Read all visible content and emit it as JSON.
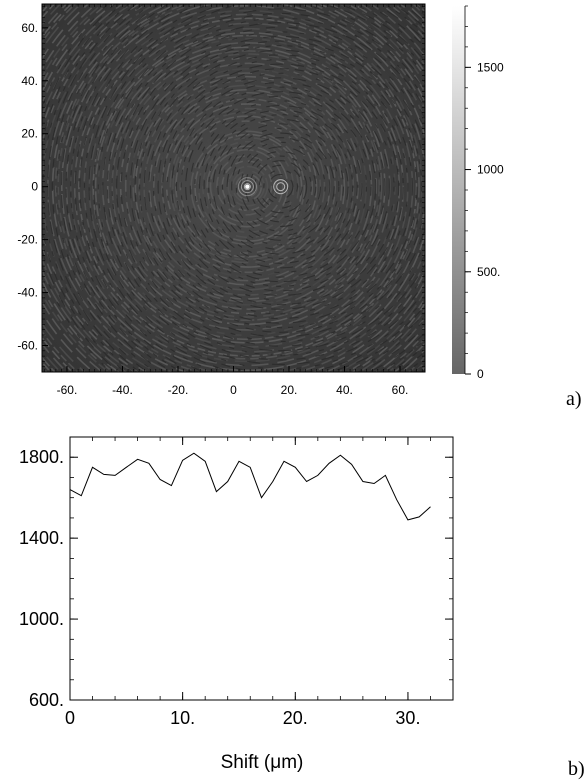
{
  "chart_data": [
    {
      "type": "heatmap",
      "panel_label": "a)",
      "title": "",
      "xlabel": "",
      "ylabel": "",
      "xlim": [
        -69,
        69
      ],
      "ylim": [
        -70,
        69
      ],
      "x_ticks": [
        {
          "value": -60,
          "label": "-60."
        },
        {
          "value": -40,
          "label": "-40."
        },
        {
          "value": -20,
          "label": "-20."
        },
        {
          "value": 0,
          "label": "0"
        },
        {
          "value": 20,
          "label": "20."
        },
        {
          "value": 40,
          "label": "40."
        },
        {
          "value": 60,
          "label": "60."
        }
      ],
      "y_ticks": [
        {
          "value": 60,
          "label": "60."
        },
        {
          "value": 40,
          "label": "40."
        },
        {
          "value": 20,
          "label": "20."
        },
        {
          "value": 0,
          "label": "0"
        },
        {
          "value": -20,
          "label": "-20."
        },
        {
          "value": -40,
          "label": "-40."
        },
        {
          "value": -60,
          "label": "-60."
        }
      ],
      "colorbar": {
        "min": 0,
        "max": 1800,
        "ticks": [
          {
            "value": 1500,
            "label": "1500"
          },
          {
            "value": 1000,
            "label": "1000"
          },
          {
            "value": 500,
            "label": "500."
          },
          {
            "value": 0,
            "label": "0"
          }
        ],
        "colors": [
          "#666666",
          "#ffffff"
        ]
      },
      "features": {
        "bright_spot": [
          5,
          0
        ],
        "ring_center_2": [
          17,
          0
        ]
      }
    },
    {
      "type": "line",
      "panel_label": "b)",
      "title": "",
      "xlabel": "Shift (μm)",
      "ylabel": "",
      "xlim": [
        0,
        34
      ],
      "ylim": [
        600,
        1900
      ],
      "x_ticks": [
        {
          "value": 0,
          "label": "0"
        },
        {
          "value": 10,
          "label": "10."
        },
        {
          "value": 20,
          "label": "20."
        },
        {
          "value": 30,
          "label": "30."
        }
      ],
      "y_ticks": [
        {
          "value": 600,
          "label": "600."
        },
        {
          "value": 1000,
          "label": "1000."
        },
        {
          "value": 1400,
          "label": "1400."
        },
        {
          "value": 1800,
          "label": "1800."
        }
      ],
      "series": [
        {
          "x": [
            0,
            1,
            2,
            3,
            4,
            5,
            6,
            7,
            8,
            9,
            10,
            11,
            12,
            13,
            14,
            15,
            16,
            17,
            18,
            19,
            20,
            21,
            22,
            23,
            24,
            25,
            26,
            27,
            28,
            29,
            30,
            31,
            32
          ],
          "values": [
            1640,
            1610,
            1750,
            1715,
            1710,
            1750,
            1790,
            1770,
            1690,
            1660,
            1785,
            1820,
            1780,
            1630,
            1680,
            1780,
            1750,
            1600,
            1680,
            1780,
            1750,
            1680,
            1710,
            1770,
            1810,
            1765,
            1680,
            1670,
            1710,
            1590,
            1490,
            1505,
            1555
          ]
        }
      ]
    }
  ]
}
